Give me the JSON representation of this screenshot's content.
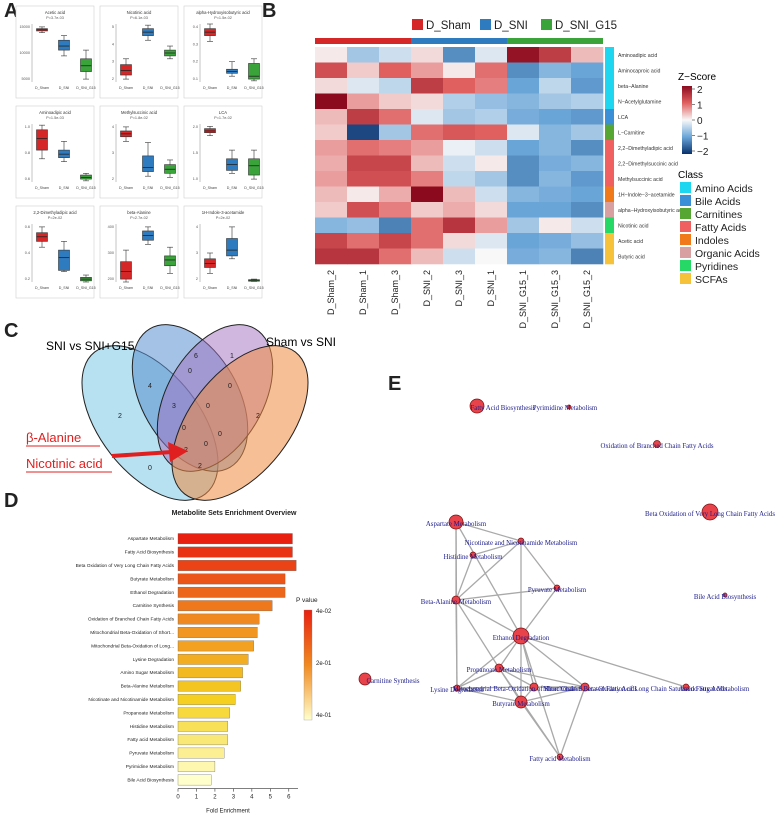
{
  "panel_labels": {
    "A": "A",
    "B": "B",
    "C": "C",
    "D": "D",
    "E": "E"
  },
  "panel_a": {
    "groups": [
      "D_Sham",
      "D_SNI",
      "D_SNI_G15"
    ],
    "colors": [
      "#d62728",
      "#2f7bbf",
      "#3aa33a"
    ],
    "plots": [
      {
        "title": "Acetic acid",
        "p": "P=3.7e-03",
        "yticks": [
          "15000",
          "10000",
          "5000"
        ],
        "boxes": [
          [
            0.88,
            0.92,
            0.9,
            0.95,
            0.85
          ],
          [
            0.55,
            0.72,
            0.62,
            0.8,
            0.45
          ],
          [
            0.18,
            0.4,
            0.28,
            0.55,
            0.05
          ]
        ]
      },
      {
        "title": "Nicotinic acid",
        "p": "P=6.1e-03",
        "yticks": [
          "5",
          "4",
          "3",
          "2"
        ],
        "boxes": [
          [
            0.12,
            0.3,
            0.2,
            0.4,
            0.05
          ],
          [
            0.8,
            0.92,
            0.86,
            0.98,
            0.72
          ],
          [
            0.45,
            0.55,
            0.5,
            0.62,
            0.4
          ]
        ]
      },
      {
        "title": "alpha-Hydroxyisobutyric acid",
        "p": "P=1.5e-02",
        "yticks": [
          "0.4",
          "0.3",
          "0.2",
          "0.1"
        ],
        "boxes": [
          [
            0.8,
            0.92,
            0.86,
            1.0,
            0.7
          ],
          [
            0.15,
            0.22,
            0.18,
            0.35,
            0.1
          ],
          [
            0.05,
            0.32,
            0.1,
            0.4,
            0.02
          ]
        ]
      },
      {
        "title": "Aminoadipic acid",
        "p": "P=1.5e-03",
        "yticks": [
          "1.0",
          "0.8",
          "0.6"
        ],
        "boxes": [
          [
            0.55,
            0.9,
            0.75,
            0.98,
            0.4
          ],
          [
            0.42,
            0.55,
            0.48,
            0.7,
            0.35
          ],
          [
            0.05,
            0.12,
            0.08,
            0.15,
            0.02
          ]
        ]
      },
      {
        "title": "Methylsuccinic acid",
        "p": "P=1.8e-02",
        "yticks": [
          "4",
          "3",
          "2"
        ],
        "boxes": [
          [
            0.78,
            0.88,
            0.83,
            0.95,
            0.7
          ],
          [
            0.18,
            0.45,
            0.25,
            0.68,
            0.1
          ],
          [
            0.15,
            0.3,
            0.22,
            0.38,
            0.08
          ]
        ]
      },
      {
        "title": "LCA",
        "p": "P=1.7e-02",
        "yticks": [
          "2.0",
          "1.5",
          "1.0"
        ],
        "boxes": [
          [
            0.85,
            0.92,
            0.88,
            0.96,
            0.8
          ],
          [
            0.2,
            0.4,
            0.3,
            0.55,
            0.15
          ],
          [
            0.12,
            0.4,
            0.28,
            0.55,
            0.05
          ]
        ]
      },
      {
        "title": "2,2-Dimethyladipic acid",
        "p": "P=2e-02",
        "yticks": [
          "0.6",
          "0.4",
          "0.2"
        ],
        "boxes": [
          [
            0.7,
            0.85,
            0.78,
            0.95,
            0.6
          ],
          [
            0.2,
            0.55,
            0.42,
            0.7,
            0.18
          ],
          [
            0.02,
            0.08,
            0.05,
            0.12,
            0.0
          ]
        ]
      },
      {
        "title": "beta-Alanine",
        "p": "P=2.7e-02",
        "yticks": [
          "400",
          "300",
          "200"
        ],
        "boxes": [
          [
            0.05,
            0.35,
            0.18,
            0.55,
            0.0
          ],
          [
            0.72,
            0.88,
            0.8,
            0.95,
            0.65
          ],
          [
            0.28,
            0.45,
            0.38,
            0.6,
            0.15
          ]
        ]
      },
      {
        "title": "1H-Indole-3-acetamide",
        "p": "P=2e-02",
        "yticks": [
          "4",
          "3",
          "2"
        ],
        "boxes": [
          [
            0.25,
            0.4,
            0.32,
            0.5,
            0.15
          ],
          [
            0.45,
            0.75,
            0.55,
            0.95,
            0.4
          ],
          [
            0.02,
            0.04,
            0.03,
            0.05,
            0.01
          ]
        ]
      }
    ]
  },
  "panel_b": {
    "legend": [
      {
        "label": "D_Sham",
        "color": "#d62728"
      },
      {
        "label": "D_SNI",
        "color": "#2f7bbf"
      },
      {
        "label": "D_SNI_G15",
        "color": "#3aa33a"
      }
    ],
    "columns": [
      "D_Sham_2",
      "D_Sham_1",
      "D_Sham_3",
      "D_SNI_2",
      "D_SNI_3",
      "D_SNI_1",
      "D_SNI_G15_1",
      "D_SNI_G15_3",
      "D_SNI_G15_2"
    ],
    "column_groups": [
      0,
      0,
      0,
      1,
      1,
      1,
      2,
      2,
      2
    ],
    "rows": [
      "Aminoadipic acid",
      "Aminocaproic acid",
      "beta−Alanine",
      "N−Acetylglutamine",
      "LCA",
      "L−Carnitine",
      "2,2−Dimethyladipic acid",
      "2,2−Dimethylsuccinic acid",
      "Methylsuccinic acid",
      "1H−Indole−3−acetamide",
      "alpha−Hydroxyisobutyric acid",
      "Nicotinic acid",
      "Acetic acid",
      "Butyric acid"
    ],
    "row_class": [
      0,
      0,
      0,
      0,
      1,
      2,
      3,
      3,
      3,
      4,
      5,
      6,
      7,
      7
    ],
    "values": [
      [
        0.1,
        -0.6,
        -0.3,
        0.2,
        -1.2,
        -0.2,
        1.9,
        1.4,
        0.4
      ],
      [
        1.2,
        0.3,
        1.0,
        0.6,
        0.1,
        0.9,
        -1.2,
        -0.8,
        -1.0
      ],
      [
        0.2,
        -0.2,
        -0.4,
        1.4,
        1.0,
        0.8,
        -1.0,
        -0.4,
        -1.1
      ],
      [
        2.0,
        0.6,
        0.3,
        0.2,
        -0.5,
        -0.7,
        -0.8,
        -0.6,
        -0.5
      ],
      [
        0.4,
        1.4,
        0.9,
        -0.2,
        -0.6,
        -0.5,
        -0.9,
        -1.0,
        -1.1
      ],
      [
        0.3,
        -1.8,
        -0.6,
        0.9,
        1.1,
        1.0,
        -0.2,
        -0.8,
        -0.6
      ],
      [
        0.6,
        0.9,
        0.8,
        0.6,
        -0.1,
        -0.3,
        -1.0,
        -0.8,
        -1.2
      ],
      [
        0.5,
        1.3,
        1.3,
        0.4,
        -0.3,
        0.1,
        -1.2,
        -0.9,
        -0.8
      ],
      [
        0.6,
        1.2,
        1.2,
        0.8,
        -0.4,
        -0.6,
        -1.2,
        -0.8,
        -1.1
      ],
      [
        0.4,
        0.1,
        0.5,
        2.0,
        0.4,
        -0.3,
        -0.8,
        -0.9,
        -1.0
      ],
      [
        0.3,
        1.2,
        0.8,
        0.3,
        0.5,
        0.2,
        -1.0,
        -1.0,
        -1.2
      ],
      [
        -0.8,
        -0.7,
        -1.3,
        0.9,
        1.5,
        0.6,
        -0.6,
        0.1,
        -0.3
      ],
      [
        1.3,
        0.9,
        1.3,
        0.9,
        0.2,
        -0.2,
        -1.0,
        -0.9,
        -0.7
      ],
      [
        1.5,
        1.5,
        0.9,
        0.4,
        -0.3,
        0.0,
        -0.9,
        -0.8,
        -1.3
      ]
    ],
    "zscore_title": "Z−Score",
    "zscore_ticks": [
      "2",
      "1",
      "0",
      "−1",
      "−2"
    ],
    "class_title": "Class",
    "classes": [
      {
        "label": "Amino Acids",
        "color": "#1fd6f0"
      },
      {
        "label": "Bile Acids",
        "color": "#3a8fd6"
      },
      {
        "label": "Carnitines",
        "color": "#55a633"
      },
      {
        "label": "Fatty Acids",
        "color": "#f06060"
      },
      {
        "label": "Indoles",
        "color": "#f07a1a"
      },
      {
        "label": "Organic Acids",
        "color": "#d8a0a0"
      },
      {
        "label": "Pyridines",
        "color": "#26d966"
      },
      {
        "label": "SCFAs",
        "color": "#f5c23a"
      }
    ]
  },
  "panel_c": {
    "left_label": "SNI vs SNI+G15",
    "right_label": "Sham vs SNI",
    "counts": [
      "6",
      "1",
      "2",
      "4",
      "0",
      "0",
      "2",
      "3",
      "0",
      "0",
      "0",
      "2",
      "0",
      "0",
      "2"
    ],
    "annotation_1": "β-Alanine",
    "annotation_2": "Nicotinic acid"
  },
  "panel_d": {
    "chart_data": {
      "type": "bar",
      "title": "Metabolite Sets Enrichment Overview",
      "xlabel": "Fold Enrichment",
      "xlim": [
        0,
        6.5
      ],
      "xticks": [
        "0",
        "1",
        "2",
        "3",
        "4",
        "5",
        "6"
      ],
      "categories": [
        "Aspartate Metabolism",
        "Fatty Acid Biosynthesis",
        "Beta Oxidation of Very Long Chain Fatty Acids",
        "Butyrate Metabolism",
        "Ethanol Degradation",
        "Carnitine Synthesis",
        "Oxidation of Branched Chain Fatty Acids",
        "Mitochondrial Beta-Oxidation of Short...",
        "Mitochondrial Beta-Oxidation of Long...",
        "Lysine Degradation",
        "Amino Sugar Metabolism",
        "Beta-Alanine Metabolism",
        "Nicotinate and Nicotinamide Metabolism",
        "Propanoate Metabolism",
        "Histidine Metabolism",
        "Fatty acid Metabolism",
        "Pyruvate Metabolism",
        "Pyrimidine Metabolism",
        "Bile Acid Biosynthesis"
      ],
      "values": [
        6.2,
        6.2,
        6.4,
        5.8,
        5.8,
        5.1,
        4.4,
        4.3,
        4.1,
        3.8,
        3.5,
        3.4,
        3.1,
        2.8,
        2.7,
        2.7,
        2.5,
        2.0,
        1.8
      ],
      "color_scale": [
        "#ffffcc",
        "#f5d020",
        "#f08a20",
        "#e82010"
      ],
      "legend_title": "P value",
      "legend_ticks": [
        "4e-02",
        "2e-01",
        "4e-01"
      ]
    }
  },
  "panel_e": {
    "nodes": [
      {
        "label": "Fatty Acid Biosynthesis"
      },
      {
        "label": "Pyrimidine Metabolism"
      },
      {
        "label": "Oxidation of Branched Chain Fatty Acids"
      },
      {
        "label": "Beta Oxidation of Very Long Chain Fatty Acids"
      },
      {
        "label": "Aspartate Metabolism"
      },
      {
        "label": "Nicotinate and Nicotinamide Metabolism"
      },
      {
        "label": "Histidine Metabolism"
      },
      {
        "label": "Pyruvate Metabolism"
      },
      {
        "label": "Bile Acid Biosynthesis"
      },
      {
        "label": "Beta-Alanine Metabolism"
      },
      {
        "label": "Ethanol Degradation"
      },
      {
        "label": "Propanoate Metabolism"
      },
      {
        "label": "Lysine Degradation"
      },
      {
        "label": "Carnitine Synthesis"
      },
      {
        "label": "Mitochondrial Beta-Oxidation of Short Chain Saturated Fatty Acids"
      },
      {
        "label": "Mitochondrial Beta-Oxidation of Long Chain Saturated Fatty Acids"
      },
      {
        "label": "Amino Sugar Metabolism"
      },
      {
        "label": "Butyrate Metabolism"
      },
      {
        "label": "Fatty acid Metabolism"
      }
    ]
  }
}
